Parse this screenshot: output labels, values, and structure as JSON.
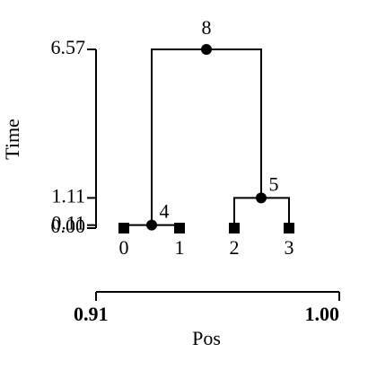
{
  "y_axis": {
    "label": "Time",
    "lim": [
      0,
      6.57
    ],
    "ticks": [
      {
        "value": 0,
        "label": "0.00"
      },
      {
        "value": 0.11,
        "label": "0.11"
      },
      {
        "value": 1.11,
        "label": "1.11"
      },
      {
        "value": 6.57,
        "label": "6.57"
      }
    ]
  },
  "x_axis": {
    "label": "Pos",
    "ticks": [
      {
        "value": 0.91,
        "label": "0.91"
      },
      {
        "value": 1,
        "label": "1.00"
      }
    ]
  },
  "nodes": [
    {
      "label": "0",
      "time": 0
    },
    {
      "label": "1",
      "time": 0
    },
    {
      "label": "2",
      "time": 0
    },
    {
      "label": "3",
      "time": 0
    },
    {
      "label": "4",
      "time": 0.11
    },
    {
      "label": "5",
      "time": 1.11
    },
    {
      "label": "8",
      "time": 6.57
    }
  ]
}
